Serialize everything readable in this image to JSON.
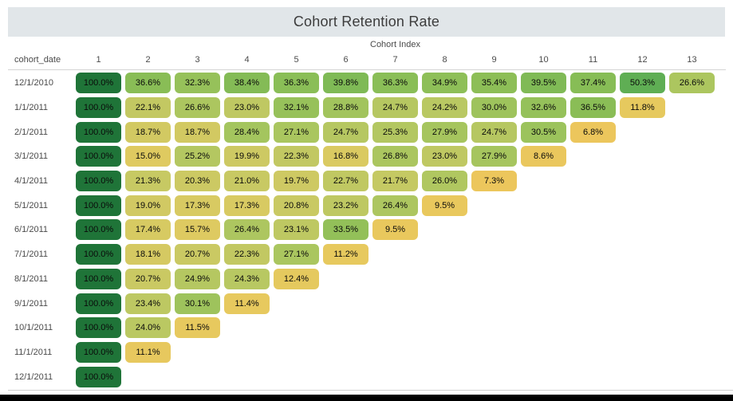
{
  "title": "Cohort Retention Rate",
  "axis": {
    "column_axis_label": "Cohort Index",
    "corner_label": "cohort_date"
  },
  "colors": {
    "title_bar_bg": "#e1e6e9",
    "title_text": "#3c3c3c",
    "header_text": "#4a4a4a",
    "cell_text": "#0a0a0a",
    "divider": "#d4d4d4",
    "footer_line": "#cfcfcf",
    "bottom_bar": "#000000"
  },
  "chart_data": {
    "type": "heatmap",
    "title": "Cohort Retention Rate",
    "xlabel": "Cohort Index",
    "row_header": "cohort_date",
    "unit": "%",
    "columns": [
      "1",
      "2",
      "3",
      "4",
      "5",
      "6",
      "7",
      "8",
      "9",
      "10",
      "11",
      "12",
      "13"
    ],
    "rows": [
      "12/1/2010",
      "1/1/2011",
      "2/1/2011",
      "3/1/2011",
      "4/1/2011",
      "5/1/2011",
      "6/1/2011",
      "7/1/2011",
      "8/1/2011",
      "9/1/2011",
      "10/1/2011",
      "11/1/2011",
      "12/1/2011"
    ],
    "values": [
      [
        100.0,
        36.6,
        32.3,
        38.4,
        36.3,
        39.8,
        36.3,
        34.9,
        35.4,
        39.5,
        37.4,
        50.3,
        26.6
      ],
      [
        100.0,
        22.1,
        26.6,
        23.0,
        32.1,
        28.8,
        24.7,
        24.2,
        30.0,
        32.6,
        36.5,
        11.8
      ],
      [
        100.0,
        18.7,
        18.7,
        28.4,
        27.1,
        24.7,
        25.3,
        27.9,
        24.7,
        30.5,
        6.8
      ],
      [
        100.0,
        15.0,
        25.2,
        19.9,
        22.3,
        16.8,
        26.8,
        23.0,
        27.9,
        8.6
      ],
      [
        100.0,
        21.3,
        20.3,
        21.0,
        19.7,
        22.7,
        21.7,
        26.0,
        7.3
      ],
      [
        100.0,
        19.0,
        17.3,
        17.3,
        20.8,
        23.2,
        26.4,
        9.5
      ],
      [
        100.0,
        17.4,
        15.7,
        26.4,
        23.1,
        33.5,
        9.5
      ],
      [
        100.0,
        18.1,
        20.7,
        22.3,
        27.1,
        11.2
      ],
      [
        100.0,
        20.7,
        24.9,
        24.3,
        12.4
      ],
      [
        100.0,
        23.4,
        30.1,
        11.4
      ],
      [
        100.0,
        24.0,
        11.5
      ],
      [
        100.0,
        11.1
      ],
      [
        100.0
      ]
    ],
    "color_scale": {
      "type": "piecewise-linear",
      "stops": [
        [
          7,
          "#ecc65c"
        ],
        [
          12,
          "#e6c95e"
        ],
        [
          16,
          "#ddca61"
        ],
        [
          20,
          "#cdc963"
        ],
        [
          24,
          "#bac862"
        ],
        [
          28,
          "#a5c55e"
        ],
        [
          32,
          "#97c15a"
        ],
        [
          37,
          "#88bd56"
        ],
        [
          50,
          "#5fae54"
        ],
        [
          100,
          "#1f7438"
        ]
      ]
    }
  }
}
